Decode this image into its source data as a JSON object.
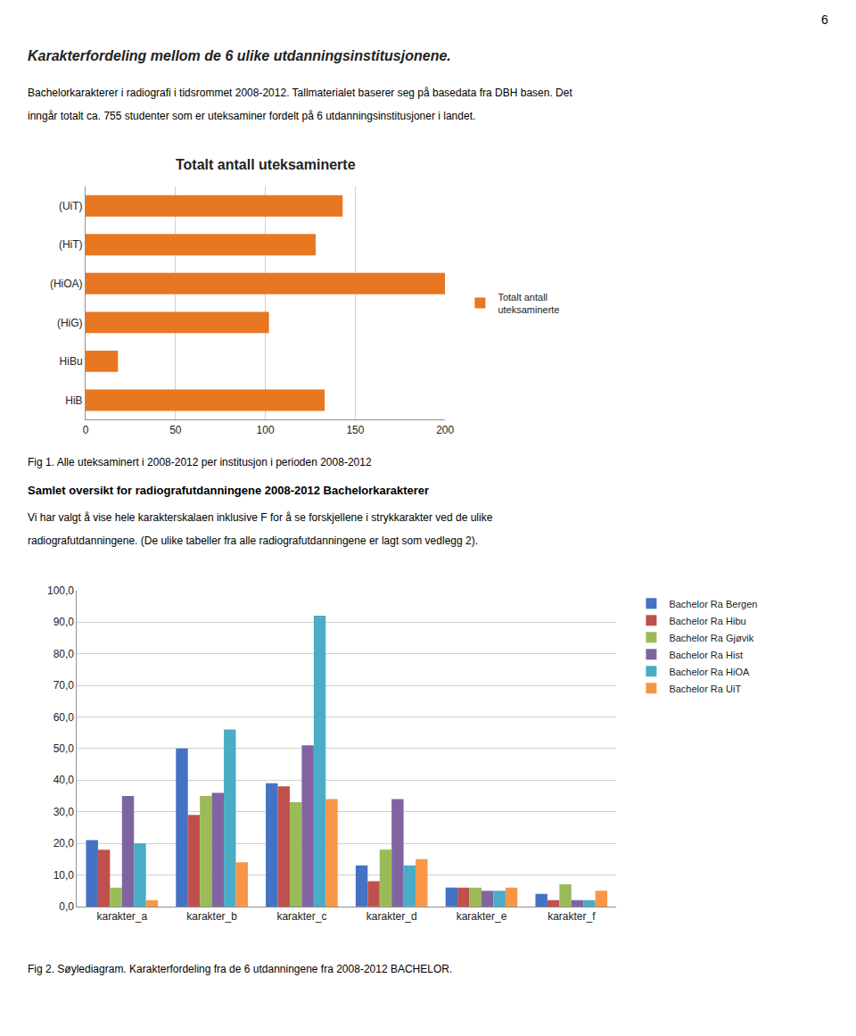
{
  "title": "Karakterfordeling mellom de 6 ulike utdanningsinstitusjonene.",
  "subtitle": [
    "Bachelorkarakterer i radiografi i tidsrommet 2008-2012. Tallmaterialet baserer seg på basedata fra DBH basen. Det",
    "inngår totalt ca. 755 studenter som er uteksaminer fordelt på 6 utdanningsinstitusjoner i landet."
  ],
  "annotations": [
    "6",
    "Fig 1. Alle uteksaminert i 2008-2012 per institusjon i perioden 2008-2012",
    "Samlet oversikt for radiografutdanningene 2008-2012 Bachelorkarakterer",
    "Vi har valgt å vise hele karakterskalaen inklusive F for å se forskjellene i strykkarakter ved de ulike",
    "radiografutdanningene. (De ulike tabeller fra alle radiografutdanningene er lagt som vedlegg 2).",
    "Fig 2. Søylediagram. Karakterfordeling fra de 6 utdanningene fra 2008-2012 BACHELOR."
  ],
  "chart_data": [
    {
      "type": "bar",
      "orientation": "horizontal",
      "title": "Totalt antall uteksaminerte",
      "categories": [
        "(UiT)",
        "(HiT)",
        "(HiOA)",
        "(HiG)",
        "HiBu",
        "HiB"
      ],
      "series": [
        {
          "name": "Totalt antall\nuteksaminerte",
          "color": "#E87722",
          "values": [
            143,
            128,
            200,
            102,
            18,
            133
          ]
        }
      ],
      "xlim": [
        0,
        200
      ],
      "xticks": [
        0,
        50,
        100,
        150,
        200
      ],
      "grid": true,
      "legend": "right"
    },
    {
      "type": "bar",
      "categories": [
        "karakter_a",
        "karakter_b",
        "karakter_c",
        "karakter_d",
        "karakter_e",
        "karakter_f"
      ],
      "series": [
        {
          "name": "Bachelor Ra Bergen",
          "color": "#4472C4",
          "values": [
            21,
            50,
            39,
            13,
            6,
            4
          ]
        },
        {
          "name": "Bachelor Ra Hibu",
          "color": "#C0504D",
          "values": [
            18,
            29,
            38,
            8,
            6,
            2
          ]
        },
        {
          "name": "Bachelor Ra Gjøvik",
          "color": "#9BBB59",
          "values": [
            6,
            35,
            33,
            18,
            6,
            7
          ]
        },
        {
          "name": "Bachelor Ra Hist",
          "color": "#8064A2",
          "values": [
            35,
            36,
            51,
            34,
            5,
            2
          ]
        },
        {
          "name": "Bachelor Ra HiOA",
          "color": "#4BACC6",
          "values": [
            20,
            56,
            92,
            13,
            5,
            2
          ]
        },
        {
          "name": "Bachelor Ra UiT",
          "color": "#F79646",
          "values": [
            2,
            14,
            34,
            15,
            6,
            5
          ]
        }
      ],
      "ylim": [
        0,
        100
      ],
      "yticks": [
        {
          "value": 0,
          "label": "0,0"
        },
        {
          "value": 10,
          "label": "10,0"
        },
        {
          "value": 20,
          "label": "20,0"
        },
        {
          "value": 30,
          "label": "30,0"
        },
        {
          "value": 40,
          "label": "40,0"
        },
        {
          "value": 50,
          "label": "50,0"
        },
        {
          "value": 60,
          "label": "60,0"
        },
        {
          "value": 70,
          "label": "70,0"
        },
        {
          "value": 80,
          "label": "80,0"
        },
        {
          "value": 90,
          "label": "90,0"
        },
        {
          "value": 100,
          "label": "100,0"
        }
      ],
      "grid": true,
      "legend": "right"
    }
  ]
}
